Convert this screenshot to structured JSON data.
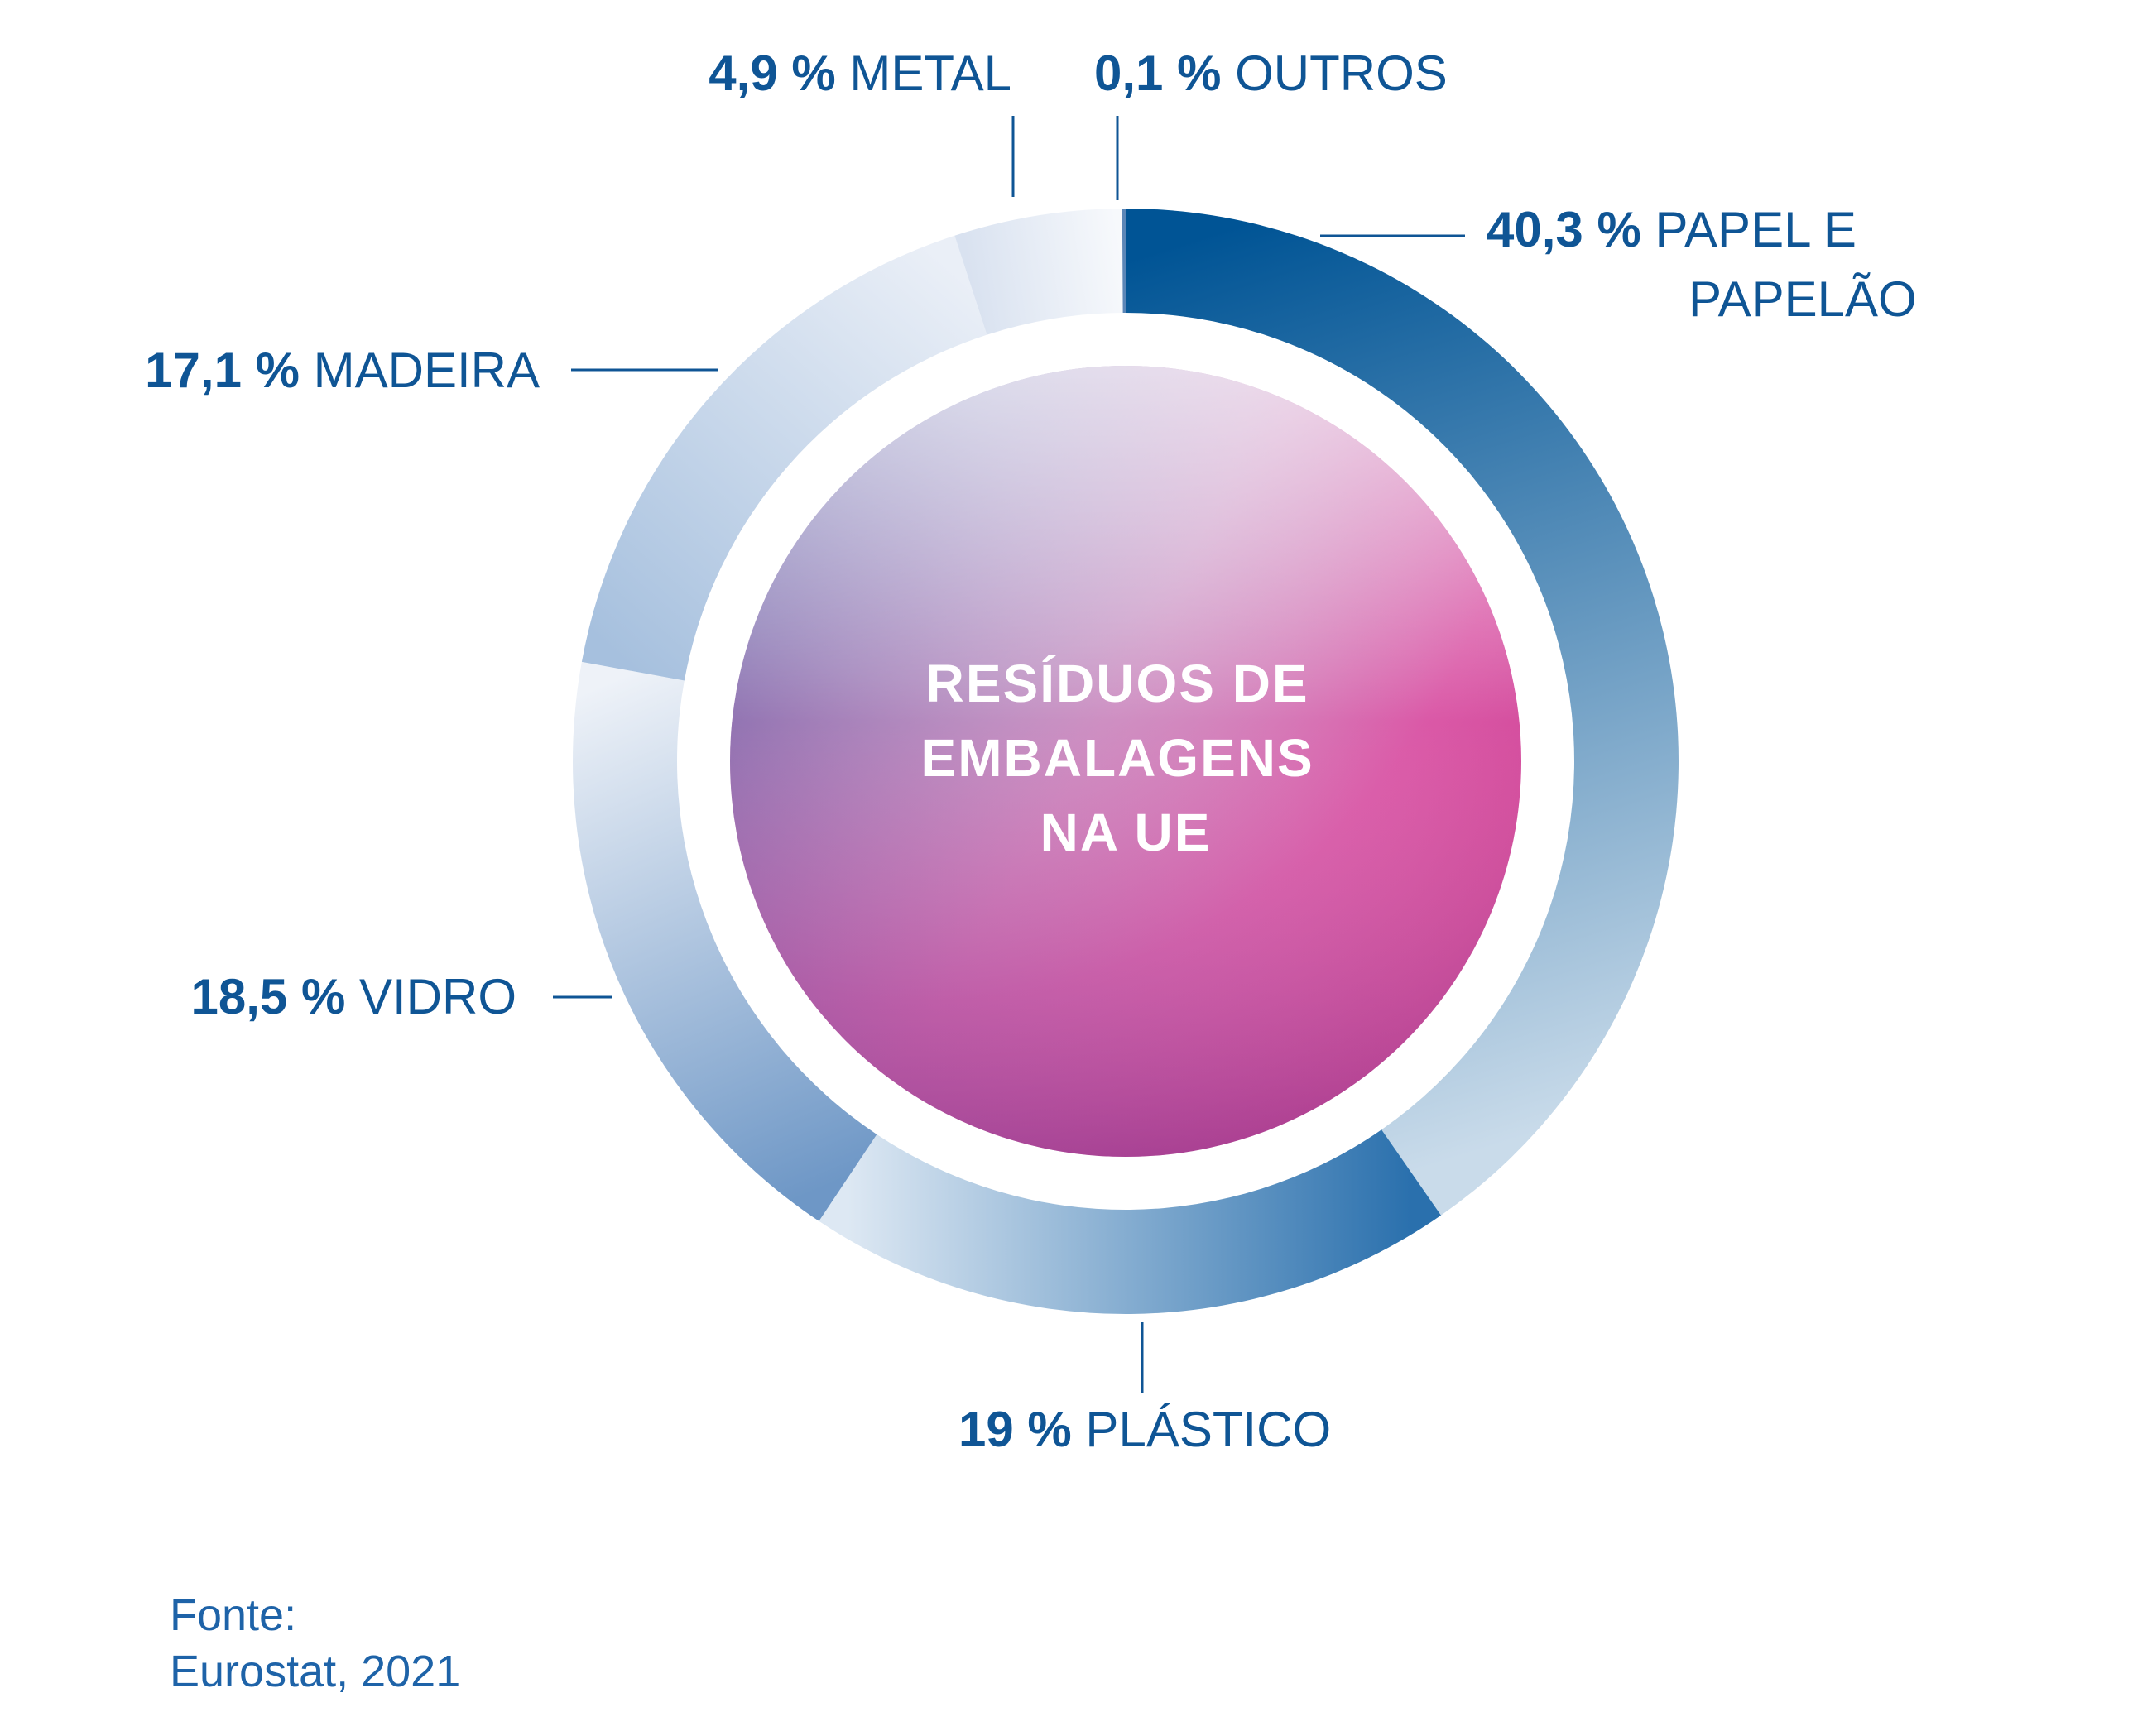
{
  "chart_data": {
    "type": "pie",
    "title": "RESÍDUOS DE EMBALAGENS NA UE",
    "title_lines": [
      "RESÍDUOS DE",
      "EMBALAGENS",
      "NA UE"
    ],
    "slices": [
      {
        "name": "PAPEL E PAPELÃO",
        "name_lines": [
          "PAPEL E",
          "PAPELÃO"
        ],
        "value": 40.3,
        "pct_label": "40,3 %",
        "color_start": "#005495",
        "color_end": "#c9dbea"
      },
      {
        "name": "PLÁSTICO",
        "name_lines": [
          "PLÁSTICO"
        ],
        "value": 19,
        "pct_label": "19 %",
        "color_start": "#2a70ad",
        "color_end": "#dde8f3"
      },
      {
        "name": "VIDRO",
        "name_lines": [
          "VIDRO"
        ],
        "value": 18.5,
        "pct_label": "18,5 %",
        "color_start": "#6e97c6",
        "color_end": "#eef2f8"
      },
      {
        "name": "MADEIRA",
        "name_lines": [
          "MADEIRA"
        ],
        "value": 17.1,
        "pct_label": "17,1 %",
        "color_start": "#a6c0de",
        "color_end": "#eaeff7"
      },
      {
        "name": "METAL",
        "name_lines": [
          "METAL"
        ],
        "value": 4.9,
        "pct_label": "4,9 %",
        "color_start": "#d9e2f0",
        "color_end": "#f7f9fc"
      },
      {
        "name": "OUTROS",
        "name_lines": [
          "OUTROS"
        ],
        "value": 0.1,
        "pct_label": "0,1 %",
        "color_start": "#5b86b7",
        "color_end": "#5b86b7"
      }
    ]
  },
  "colors": {
    "label_text": "#0f5595",
    "center_gradient": [
      "#f3eef7",
      "#ee4fa8",
      "#5d5b9e",
      "#d83a8c"
    ]
  },
  "source": {
    "line1": "Fonte:",
    "line2": "Eurostat, 2021"
  }
}
